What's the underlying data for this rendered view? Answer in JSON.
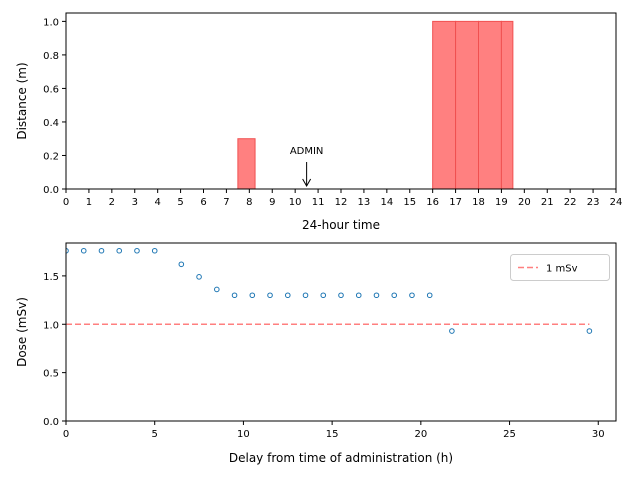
{
  "chart_data": [
    {
      "type": "bar",
      "xlabel": "24-hour time",
      "ylabel": "Distance (m)",
      "xlim": [
        0,
        24
      ],
      "ylim": [
        0,
        1.05
      ],
      "xticks": [
        0,
        1,
        2,
        3,
        4,
        5,
        6,
        7,
        8,
        9,
        10,
        11,
        12,
        13,
        14,
        15,
        16,
        17,
        18,
        19,
        20,
        21,
        22,
        23,
        24
      ],
      "yticks": [
        0.0,
        0.2,
        0.4,
        0.6,
        0.8,
        1.0
      ],
      "ytick_labels": [
        "0.0",
        "0.2",
        "0.4",
        "0.6",
        "0.8",
        "1.0"
      ],
      "bars": [
        {
          "start": 7.5,
          "end": 8.25,
          "value": 0.3
        },
        {
          "start": 16.0,
          "end": 17.0,
          "value": 1.0
        },
        {
          "start": 17.0,
          "end": 18.0,
          "value": 1.0
        },
        {
          "start": 18.0,
          "end": 19.0,
          "value": 1.0
        },
        {
          "start": 19.0,
          "end": 19.5,
          "value": 1.0
        }
      ],
      "bar_color": "#ff8080",
      "bar_edge_color": "#f05050",
      "annotation": {
        "text": "ADMIN",
        "x": 10.5,
        "y_text": 0.2,
        "y_arrow_tip": 0.0
      }
    },
    {
      "type": "scatter",
      "xlabel": "Delay from time of administration (h)",
      "ylabel": "Dose (mSv)",
      "xlim": [
        0,
        31
      ],
      "ylim": [
        0,
        1.84
      ],
      "xticks": [
        0,
        5,
        10,
        15,
        20,
        25,
        30
      ],
      "xtick_labels": [
        "0",
        "5",
        "10",
        "15",
        "20",
        "25",
        "30"
      ],
      "yticks": [
        0.0,
        0.5,
        1.0,
        1.5
      ],
      "ytick_labels": [
        "0.0",
        "0.5",
        "1.0",
        "1.5"
      ],
      "points": {
        "x": [
          0,
          1,
          2,
          3,
          4,
          5,
          6.5,
          7.5,
          8.5,
          9.5,
          10.5,
          11.5,
          12.5,
          13.5,
          14.5,
          15.5,
          16.5,
          17.5,
          18.5,
          19.5,
          20.5,
          21.75,
          29.5
        ],
        "y": [
          1.76,
          1.76,
          1.76,
          1.76,
          1.76,
          1.76,
          1.62,
          1.49,
          1.36,
          1.3,
          1.3,
          1.3,
          1.3,
          1.3,
          1.3,
          1.3,
          1.3,
          1.3,
          1.3,
          1.3,
          1.3,
          0.93,
          0.93
        ]
      },
      "point_color": "#1f77b4",
      "reference_line": {
        "y": 1.0,
        "x_start": 0,
        "x_end": 29.5,
        "label": "1 mSv",
        "color": "#ff7f7f"
      },
      "legend": {
        "position": "top-right",
        "entries": [
          "1 mSv"
        ]
      }
    }
  ]
}
